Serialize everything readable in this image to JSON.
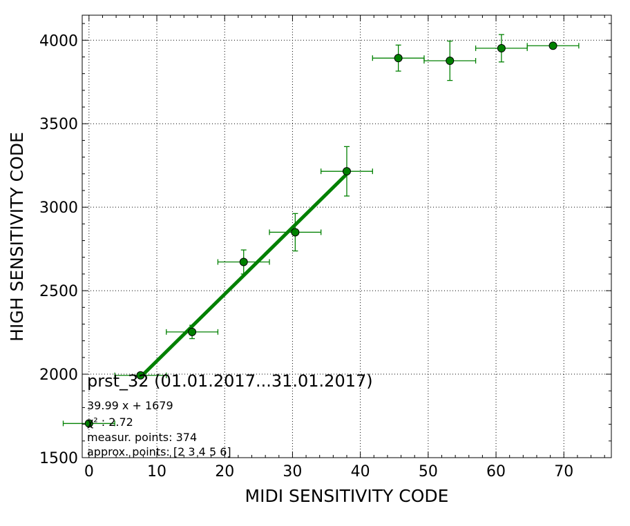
{
  "chart_data": {
    "type": "scatter",
    "xlabel": "MIDI SENSITIVITY CODE",
    "ylabel": "HIGH SENSITIVITY CODE",
    "xlim": [
      -1,
      77
    ],
    "ylim": [
      1500,
      4150
    ],
    "x_ticks": [
      0,
      10,
      20,
      30,
      40,
      50,
      60,
      70
    ],
    "y_ticks": [
      1500,
      2000,
      2500,
      3000,
      3500,
      4000
    ],
    "grid": true,
    "color": "#008000",
    "points": [
      {
        "x": 0.0,
        "y": 1705,
        "xerr": 3.8,
        "yerr": 0
      },
      {
        "x": 7.6,
        "y": 1993,
        "xerr": 3.8,
        "yerr": 0
      },
      {
        "x": 15.2,
        "y": 2253,
        "xerr": 3.8,
        "yerr": 40
      },
      {
        "x": 22.8,
        "y": 2672,
        "xerr": 3.8,
        "yerr": 72
      },
      {
        "x": 30.4,
        "y": 2850,
        "xerr": 3.8,
        "yerr": 112
      },
      {
        "x": 38.0,
        "y": 3215,
        "xerr": 3.8,
        "yerr": 148
      },
      {
        "x": 45.6,
        "y": 3893,
        "xerr": 3.8,
        "yerr": 78
      },
      {
        "x": 53.2,
        "y": 3877,
        "xerr": 3.8,
        "yerr": 118
      },
      {
        "x": 60.8,
        "y": 3952,
        "xerr": 3.8,
        "yerr": 82
      },
      {
        "x": 68.4,
        "y": 3967,
        "xerr": 3.8,
        "yerr": 0
      }
    ],
    "fit": {
      "slope": 39.99,
      "intercept": 1679,
      "x_start": 7.6,
      "x_end": 38.0
    },
    "annotations": {
      "title": "prst_32 (01.01.2017...31.01.2017)",
      "equation": "39.99 x + 1679",
      "chi2": "χ² : 2.72",
      "measur_points": "measur. points: 374",
      "approx_points": "approx. points: [2 3 4 5 6]"
    }
  }
}
